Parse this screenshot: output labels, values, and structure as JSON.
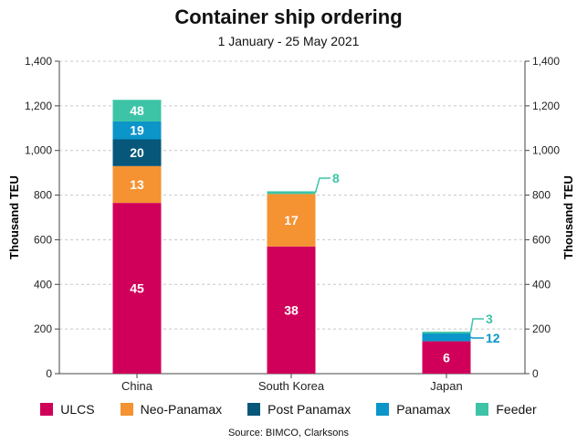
{
  "chart_data": {
    "type": "bar",
    "stacked": true,
    "title": "Container ship ordering",
    "subtitle": "1 January - 25 May 2021",
    "ylabel": "Thousand TEU",
    "ylabel_right": "Thousand TEU",
    "xlabel": "",
    "ylim": [
      0,
      1400
    ],
    "yticks": [
      0,
      200,
      400,
      600,
      800,
      1000,
      1200,
      1400
    ],
    "ytick_labels": [
      "0",
      "200",
      "400",
      "600",
      "800",
      "1,000",
      "1,200",
      "1,400"
    ],
    "grid": true,
    "legend_position": "bottom",
    "categories": [
      "China",
      "South Korea",
      "Japan"
    ],
    "series": [
      {
        "name": "ULCS",
        "color": "#d0005a",
        "values": [
          765,
          570,
          145
        ],
        "labels": [
          "45",
          "38",
          "6"
        ]
      },
      {
        "name": "Neo-Panamax",
        "color": "#f59232",
        "values": [
          165,
          235,
          0
        ],
        "labels": [
          "13",
          "17",
          ""
        ]
      },
      {
        "name": "Post Panamax",
        "color": "#06577a",
        "values": [
          120,
          0,
          0
        ],
        "labels": [
          "20",
          "",
          ""
        ]
      },
      {
        "name": "Panamax",
        "color": "#0b95c9",
        "values": [
          80,
          0,
          35
        ],
        "labels": [
          "19",
          "",
          "12"
        ]
      },
      {
        "name": "Feeder",
        "color": "#3dc4a7",
        "values": [
          97,
          12,
          8
        ],
        "labels": [
          "48",
          "8",
          "3"
        ]
      }
    ],
    "source": "Source: BIMCO, Clarksons"
  }
}
